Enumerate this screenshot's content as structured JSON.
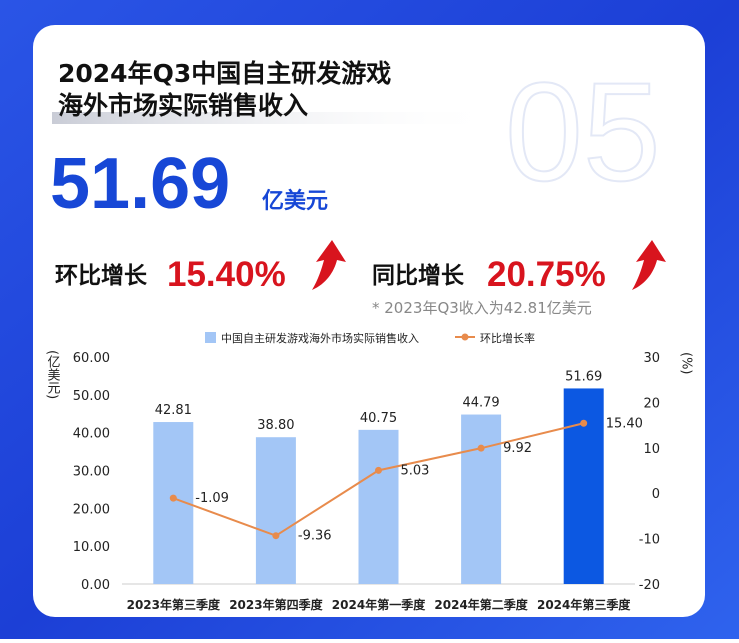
{
  "header": {
    "title_lines": [
      "2024年Q3中国自主研发游戏",
      "海外市场实际销售收入"
    ],
    "watermark": "05",
    "headline": {
      "value": "51.69",
      "unit": "亿美元"
    },
    "metrics": [
      {
        "label": "环比增长",
        "value": "15.40%"
      },
      {
        "label": "同比增长",
        "value": "20.75%"
      }
    ],
    "note": "* 2023年Q3收入为42.81亿美元"
  },
  "chart_data": {
    "type": "bar-line",
    "categories": [
      "2023年第三季度",
      "2023年第四季度",
      "2024年第一季度",
      "2024年第二季度",
      "2024年第三季度"
    ],
    "series": [
      {
        "name": "中国自主研发游戏海外市场实际销售收入",
        "type": "bar",
        "color": "#a3c6f6",
        "colors": [
          "#a3c6f6",
          "#a3c6f6",
          "#a3c6f6",
          "#a3c6f6",
          "#0c58e2"
        ],
        "values": [
          42.81,
          38.8,
          40.75,
          44.79,
          51.69
        ],
        "value_labels": [
          "42.81",
          "38.80",
          "40.75",
          "44.79",
          "51.69"
        ]
      },
      {
        "name": "环比增长率",
        "type": "line",
        "axis": "y2",
        "color": "#e88b4c",
        "values": [
          -1.09,
          -9.36,
          5.03,
          9.92,
          15.4
        ],
        "value_labels": [
          "-1.09",
          "-9.36",
          "5.03",
          "9.92",
          "15.40"
        ]
      }
    ],
    "y_label": "(亿美元)",
    "y2_label": "(%)",
    "ylim": [
      0,
      60
    ],
    "yticks": [
      {
        "value": 0,
        "label": "0.00"
      },
      {
        "value": 10,
        "label": "10.00"
      },
      {
        "value": 20,
        "label": "20.00"
      },
      {
        "value": 30,
        "label": "30.00"
      },
      {
        "value": 40,
        "label": "40.00"
      },
      {
        "value": 50,
        "label": "50.00"
      },
      {
        "value": 60,
        "label": "60.00"
      }
    ],
    "y2lim": [
      -20,
      30
    ],
    "y2ticks": [
      -20,
      -10,
      0,
      10,
      20,
      30
    ]
  }
}
